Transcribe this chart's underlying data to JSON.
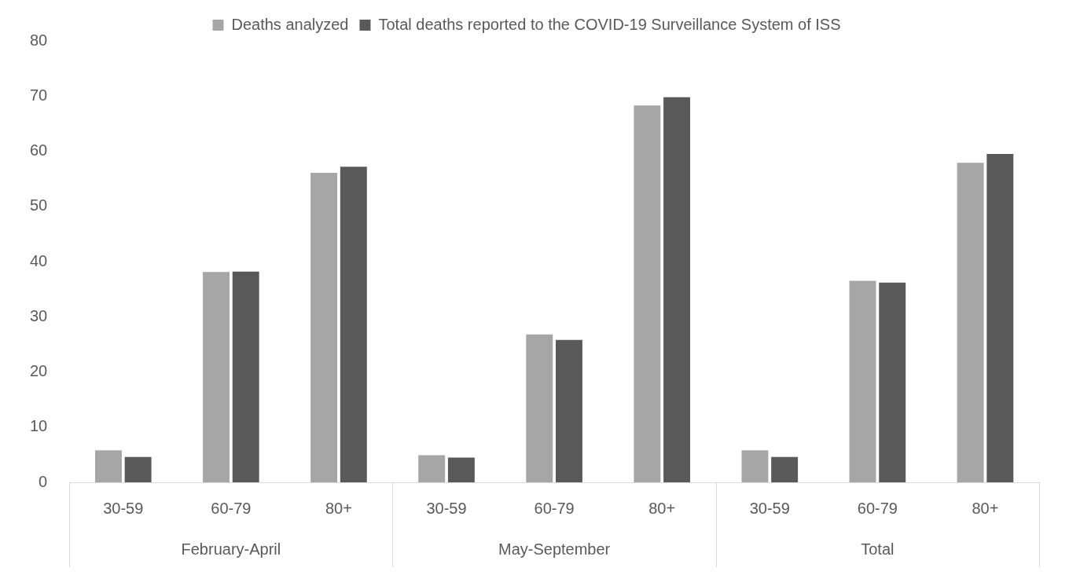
{
  "chart_data": {
    "type": "bar",
    "categories": [
      "30-59",
      "60-79",
      "80+",
      "30-59",
      "60-79",
      "80+",
      "30-59",
      "60-79",
      "80+"
    ],
    "series": [
      {
        "name": "Deaths analyzed",
        "color": "#a6a6a6",
        "values": [
          5.8,
          38.1,
          56.1,
          4.9,
          26.8,
          68.3,
          5.8,
          36.5,
          57.9
        ]
      },
      {
        "name": "Total deaths reported to the COVID-19 Surveillance System of ISS",
        "color": "#595959",
        "values": [
          4.6,
          38.2,
          57.2,
          4.5,
          25.8,
          69.8,
          4.6,
          36.2,
          59.5
        ]
      }
    ],
    "ylim": [
      0,
      80
    ],
    "yticks": [
      0,
      10,
      20,
      30,
      40,
      50,
      60,
      70,
      80
    ],
    "grid": false,
    "legend": "top",
    "annotations": [
      "February-April",
      "May-September",
      "Total"
    ]
  }
}
